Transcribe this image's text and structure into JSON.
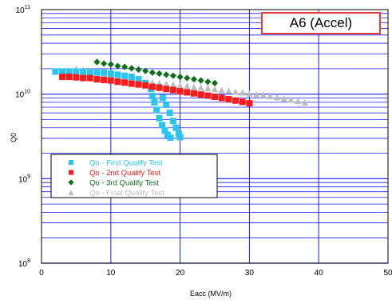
{
  "chart_data": {
    "type": "scatter",
    "title": "A6 (Accel)",
    "xlabel": "Eacc (MV/m)",
    "ylabel": "Q0",
    "xlim": [
      0,
      50
    ],
    "ylim": [
      100000000.0,
      100000000000.0
    ],
    "yscale": "log",
    "x_ticks": [
      "0",
      "10",
      "20",
      "30",
      "40",
      "50"
    ],
    "y_ticks": [
      {
        "base": "10",
        "exp": "8"
      },
      {
        "base": "10",
        "exp": "9"
      },
      {
        "base": "10",
        "exp": "10"
      },
      {
        "base": "10",
        "exp": "11"
      }
    ],
    "grid": true,
    "legend_position": "lower-left",
    "series": [
      {
        "name": "Qo - First Qualify Test",
        "color": "#29c5f0",
        "marker": "square",
        "points": [
          [
            2,
            18500000000.0
          ],
          [
            3,
            18500000000.0
          ],
          [
            4,
            18500000000.0
          ],
          [
            5,
            18500000000.0
          ],
          [
            6,
            18500000000.0
          ],
          [
            7,
            18000000000.0
          ],
          [
            8,
            18000000000.0
          ],
          [
            9,
            18000000000.0
          ],
          [
            10,
            17500000000.0
          ],
          [
            11,
            17000000000.0
          ],
          [
            12,
            16500000000.0
          ],
          [
            13,
            16000000000.0
          ],
          [
            14,
            15000000000.0
          ],
          [
            15,
            13500000000.0
          ],
          [
            15.8,
            11500000000.0
          ],
          [
            16,
            9500000000.0
          ],
          [
            16.3,
            8000000000.0
          ],
          [
            16.6,
            6500000000.0
          ],
          [
            17,
            5200000000.0
          ],
          [
            17.4,
            4300000000.0
          ],
          [
            17.8,
            3700000000.0
          ],
          [
            18.2,
            3300000000.0
          ],
          [
            18.6,
            3050000000.0
          ],
          [
            17,
            12000000000.0
          ],
          [
            17.5,
            9000000000.0
          ],
          [
            18,
            7500000000.0
          ],
          [
            18.5,
            6000000000.0
          ],
          [
            19,
            4800000000.0
          ],
          [
            19.4,
            4000000000.0
          ],
          [
            19.8,
            3400000000.0
          ],
          [
            20,
            3100000000.0
          ]
        ]
      },
      {
        "name": "Qo - 2nd Qualify Test",
        "color": "#ff1a1a",
        "marker": "square",
        "points": [
          [
            3,
            16000000000.0
          ],
          [
            4,
            16000000000.0
          ],
          [
            5,
            15800000000.0
          ],
          [
            6,
            15500000000.0
          ],
          [
            7,
            15500000000.0
          ],
          [
            8,
            15000000000.0
          ],
          [
            9,
            14700000000.0
          ],
          [
            10,
            14500000000.0
          ],
          [
            11,
            14000000000.0
          ],
          [
            12,
            13700000000.0
          ],
          [
            13,
            13300000000.0
          ],
          [
            14,
            13000000000.0
          ],
          [
            15,
            12700000000.0
          ],
          [
            16,
            12200000000.0
          ],
          [
            17,
            11900000000.0
          ],
          [
            18,
            11500000000.0
          ],
          [
            19,
            11200000000.0
          ],
          [
            20,
            10800000000.0
          ],
          [
            21,
            10500000000.0
          ],
          [
            22,
            10200000000.0
          ],
          [
            23,
            9900000000.0
          ],
          [
            24,
            9600000000.0
          ],
          [
            25,
            9300000000.0
          ],
          [
            26,
            9000000000.0
          ],
          [
            27,
            8700000000.0
          ],
          [
            28,
            8400000000.0
          ],
          [
            29,
            8100000000.0
          ],
          [
            30,
            7800000000.0
          ]
        ]
      },
      {
        "name": "Qo - 3rd Qualify Test",
        "color": "#0f6e1c",
        "marker": "diamond",
        "points": [
          [
            8,
            24000000000.0
          ],
          [
            9,
            23000000000.0
          ],
          [
            10,
            22500000000.0
          ],
          [
            11,
            21500000000.0
          ],
          [
            12,
            21000000000.0
          ],
          [
            13,
            20200000000.0
          ],
          [
            14,
            19500000000.0
          ],
          [
            15,
            18800000000.0
          ],
          [
            16,
            18000000000.0
          ],
          [
            17,
            17500000000.0
          ],
          [
            18,
            17000000000.0
          ],
          [
            19,
            16500000000.0
          ],
          [
            20,
            16000000000.0
          ],
          [
            21,
            15500000000.0
          ],
          [
            22,
            15000000000.0
          ],
          [
            23,
            14500000000.0
          ],
          [
            24,
            14000000000.0
          ],
          [
            25,
            13500000000.0
          ]
        ]
      },
      {
        "name": "Qo - Final Qualify Test",
        "color": "#bcbcbc",
        "marker": "triangle",
        "points": [
          [
            5,
            20000000000.0
          ],
          [
            6,
            19500000000.0
          ],
          [
            7,
            19000000000.0
          ],
          [
            8,
            18500000000.0
          ],
          [
            9,
            17500000000.0
          ],
          [
            10,
            17000000000.0
          ],
          [
            11,
            16200000000.0
          ],
          [
            12,
            15500000000.0
          ],
          [
            13,
            15000000000.0
          ],
          [
            14,
            14500000000.0
          ],
          [
            15,
            14000000000.0
          ],
          [
            16,
            13800000000.0
          ],
          [
            17,
            13500000000.0
          ],
          [
            18,
            13200000000.0
          ],
          [
            19,
            13000000000.0
          ],
          [
            20,
            12700000000.0
          ],
          [
            21,
            12500000000.0
          ],
          [
            22,
            12200000000.0
          ],
          [
            23,
            12000000000.0
          ],
          [
            24,
            11800000000.0
          ],
          [
            25,
            11500000000.0
          ],
          [
            26,
            11200000000.0
          ],
          [
            27,
            11000000000.0
          ],
          [
            28,
            10700000000.0
          ],
          [
            29,
            10500000000.0
          ],
          [
            30,
            10200000000.0
          ],
          [
            31,
            10000000000.0
          ],
          [
            32,
            9800000000.0
          ],
          [
            33,
            9500000000.0
          ],
          [
            34,
            9200000000.0
          ],
          [
            35,
            8900000000.0
          ],
          [
            36,
            8600000000.0
          ],
          [
            37,
            8300000000.0
          ],
          [
            38,
            8000000000.0
          ]
        ]
      }
    ]
  }
}
